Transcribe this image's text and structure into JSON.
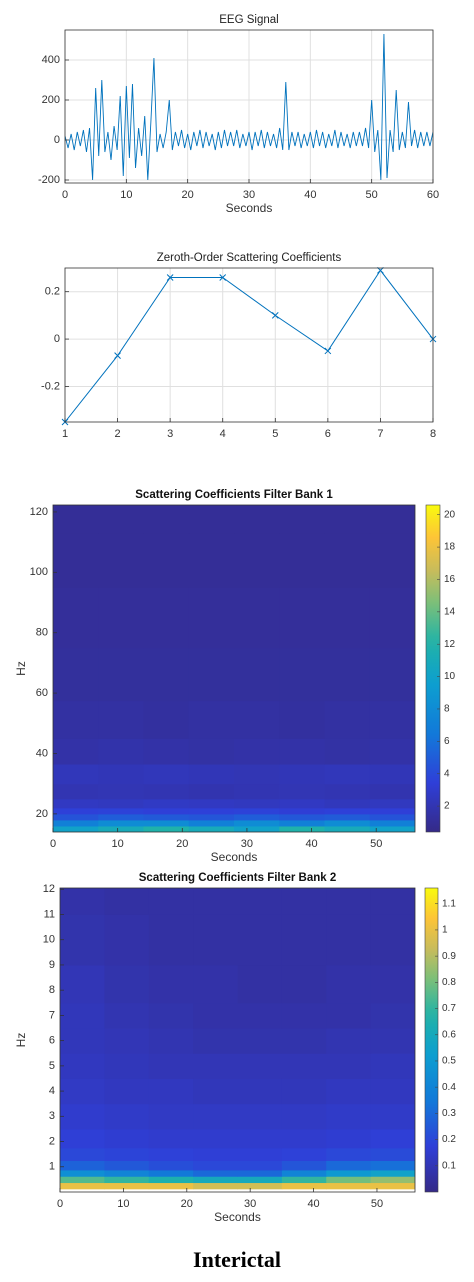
{
  "chart_data": [
    {
      "type": "line",
      "title": "EEG Signal",
      "xlabel": "Seconds",
      "color": "#0072bd",
      "grid": true,
      "x": [
        0,
        0.5,
        1,
        1.5,
        2,
        2.5,
        3,
        3.5,
        4,
        4.5,
        5,
        5.5,
        6,
        6.5,
        7,
        7.5,
        8,
        8.5,
        9,
        9.5,
        10,
        10.5,
        11,
        11.5,
        12,
        12.5,
        13,
        13.5,
        14,
        14.5,
        15,
        15.5,
        16,
        16.5,
        17,
        17.5,
        18,
        18.5,
        19,
        19.5,
        20,
        20.5,
        21,
        21.5,
        22,
        22.5,
        23,
        23.5,
        24,
        24.5,
        25,
        25.5,
        26,
        26.5,
        27,
        27.5,
        28,
        28.5,
        29,
        29.5,
        30,
        30.5,
        31,
        31.5,
        32,
        32.5,
        33,
        33.5,
        34,
        34.5,
        35,
        35.5,
        36,
        36.5,
        37,
        37.5,
        38,
        38.5,
        39,
        39.5,
        40,
        40.5,
        41,
        41.5,
        42,
        42.5,
        43,
        43.5,
        44,
        44.5,
        45,
        45.5,
        46,
        46.5,
        47,
        47.5,
        48,
        48.5,
        49,
        49.5,
        50,
        50.5,
        51,
        51.5,
        52,
        52.5,
        53,
        53.5,
        54,
        54.5,
        55,
        55.5,
        56,
        56.5,
        57,
        57.5,
        58,
        58.5,
        59,
        59.5,
        60
      ],
      "values": [
        20,
        -40,
        30,
        -50,
        40,
        -30,
        50,
        -60,
        60,
        -200,
        260,
        -80,
        300,
        -60,
        40,
        -100,
        70,
        -50,
        220,
        -180,
        270,
        -90,
        280,
        -140,
        60,
        -80,
        120,
        -200,
        90,
        410,
        -60,
        30,
        -40,
        40,
        200,
        -50,
        40,
        -30,
        50,
        -40,
        30,
        -50,
        40,
        -30,
        50,
        -40,
        40,
        -30,
        30,
        -50,
        40,
        -40,
        50,
        -30,
        40,
        -30,
        50,
        -40,
        30,
        -30,
        40,
        -50,
        40,
        -30,
        50,
        -40,
        40,
        -30,
        30,
        -40,
        60,
        -50,
        290,
        -50,
        40,
        -30,
        40,
        -40,
        30,
        -30,
        40,
        -40,
        50,
        -30,
        40,
        -40,
        30,
        -30,
        50,
        -40,
        40,
        -30,
        30,
        -40,
        40,
        -30,
        40,
        -30,
        60,
        -40,
        200,
        -60,
        50,
        -200,
        530,
        -190,
        50,
        -60,
        250,
        -50,
        40,
        -40,
        190,
        -30,
        50,
        -40,
        40,
        -30,
        40,
        -30,
        40
      ],
      "xlim": [
        0,
        60
      ],
      "xticks": [
        0,
        10,
        20,
        30,
        40,
        50,
        60
      ],
      "ylim": [
        -215,
        550
      ],
      "yticks": [
        -200,
        0,
        200,
        400
      ]
    },
    {
      "type": "line",
      "title": "Zeroth-Order Scattering Coefficients",
      "color": "#0072bd",
      "grid": true,
      "marker": "x",
      "x": [
        1,
        2,
        3,
        4,
        5,
        6,
        7,
        8
      ],
      "values": [
        -0.35,
        -0.07,
        0.26,
        0.26,
        0.1,
        -0.05,
        0.29,
        0
      ],
      "xlim": [
        1,
        8
      ],
      "xticks": [
        1,
        2,
        3,
        4,
        5,
        6,
        7,
        8
      ],
      "ylim": [
        -0.35,
        0.3
      ],
      "yticks": [
        -0.2,
        0,
        0.2
      ]
    },
    {
      "type": "heatmap",
      "title": "Scattering Coefficients Filter Bank 1",
      "xlabel": "Seconds",
      "ylabel": "Hz",
      "colormap": "parula",
      "x": [
        3.5,
        10.5,
        17.5,
        24.5,
        31.5,
        38.5,
        45.5,
        52.5
      ],
      "y": [
        15,
        17,
        19,
        21,
        23,
        27,
        33,
        40,
        50,
        65,
        85,
        105,
        121
      ],
      "z": [
        [
          10,
          11,
          12,
          11,
          10,
          12,
          11,
          10
        ],
        [
          7,
          8,
          8,
          7,
          8,
          7,
          8,
          7
        ],
        [
          4.5,
          5,
          4.8,
          4.6,
          5,
          4.7,
          4.9,
          4.5
        ],
        [
          3.5,
          3.6,
          3.4,
          3.5,
          3.6,
          3.3,
          3.5,
          3.4
        ],
        [
          2.6,
          2.5,
          2.7,
          2.6,
          2.5,
          2.6,
          2.4,
          2.5
        ],
        [
          2.0,
          2.1,
          2.0,
          1.9,
          2.0,
          2.1,
          2.0,
          1.9
        ],
        [
          2.3,
          2.2,
          2.3,
          2.2,
          2.1,
          2.2,
          2.3,
          2.2
        ],
        [
          1.6,
          1.7,
          1.6,
          1.5,
          1.6,
          1.6,
          1.5,
          1.6
        ],
        [
          1.4,
          1.4,
          1.3,
          1.4,
          1.4,
          1.3,
          1.4,
          1.4
        ],
        [
          1.2,
          1.2,
          1.2,
          1.2,
          1.2,
          1.2,
          1.2,
          1.2
        ],
        [
          1.1,
          1.1,
          1.1,
          1.1,
          1.1,
          1.1,
          1.1,
          1.1
        ],
        [
          1.0,
          1.0,
          1.0,
          1.0,
          1.0,
          1.0,
          1.0,
          1.0
        ],
        [
          1.0,
          1.0,
          1.0,
          1.0,
          1.0,
          1.0,
          1.0,
          1.0
        ]
      ],
      "xlim": [
        0,
        56
      ],
      "xticks": [
        0,
        10,
        20,
        30,
        40,
        50
      ],
      "ylim": [
        14,
        122.3
      ],
      "yticks": [
        20,
        40,
        60,
        80,
        100,
        120
      ],
      "clim": [
        0.4,
        20.6
      ],
      "cticks": [
        2,
        4,
        6,
        8,
        10,
        12,
        14,
        16,
        18,
        20
      ]
    },
    {
      "type": "heatmap",
      "title": "Scattering Coefficients Filter Bank 2",
      "xlabel": "Seconds",
      "ylabel": "Hz",
      "colormap": "parula",
      "x": [
        3.5,
        10.5,
        17.5,
        24.5,
        31.5,
        38.5,
        45.5,
        52.5
      ],
      "y": [
        0.25,
        0.5,
        0.75,
        1,
        1.5,
        2,
        3,
        4,
        5,
        6,
        7,
        8,
        10,
        12
      ],
      "z": [
        [
          1.0,
          1.0,
          1.0,
          0.95,
          0.95,
          1.0,
          1.0,
          1.0
        ],
        [
          0.75,
          0.7,
          0.65,
          0.6,
          0.6,
          0.7,
          0.8,
          0.85
        ],
        [
          0.45,
          0.4,
          0.35,
          0.3,
          0.3,
          0.4,
          0.5,
          0.55
        ],
        [
          0.28,
          0.25,
          0.22,
          0.2,
          0.2,
          0.24,
          0.3,
          0.32
        ],
        [
          0.2,
          0.19,
          0.18,
          0.17,
          0.17,
          0.18,
          0.2,
          0.21
        ],
        [
          0.17,
          0.16,
          0.15,
          0.15,
          0.15,
          0.15,
          0.16,
          0.17
        ],
        [
          0.15,
          0.14,
          0.13,
          0.13,
          0.13,
          0.13,
          0.14,
          0.14
        ],
        [
          0.13,
          0.12,
          0.12,
          0.11,
          0.11,
          0.11,
          0.12,
          0.12
        ],
        [
          0.12,
          0.11,
          0.1,
          0.1,
          0.1,
          0.1,
          0.1,
          0.11
        ],
        [
          0.11,
          0.1,
          0.09,
          0.08,
          0.08,
          0.08,
          0.09,
          0.09
        ],
        [
          0.11,
          0.09,
          0.08,
          0.07,
          0.07,
          0.07,
          0.07,
          0.08
        ],
        [
          0.1,
          0.08,
          0.07,
          0.07,
          0.06,
          0.06,
          0.07,
          0.07
        ],
        [
          0.08,
          0.07,
          0.06,
          0.06,
          0.06,
          0.06,
          0.06,
          0.06
        ],
        [
          0.07,
          0.06,
          0.06,
          0.06,
          0.06,
          0.06,
          0.06,
          0.06
        ]
      ],
      "xlim": [
        0,
        56
      ],
      "xticks": [
        0,
        10,
        20,
        30,
        40,
        50
      ],
      "ylim": [
        0,
        12.05
      ],
      "yticks": [
        1,
        2,
        3,
        4,
        5,
        6,
        7,
        8,
        9,
        10,
        11,
        12
      ],
      "clim": [
        0,
        1.16
      ],
      "cticks": [
        0.1,
        0.2,
        0.3,
        0.4,
        0.5,
        0.6,
        0.7,
        0.8,
        0.9,
        1,
        1.1
      ]
    }
  ],
  "caption": "Interictal"
}
